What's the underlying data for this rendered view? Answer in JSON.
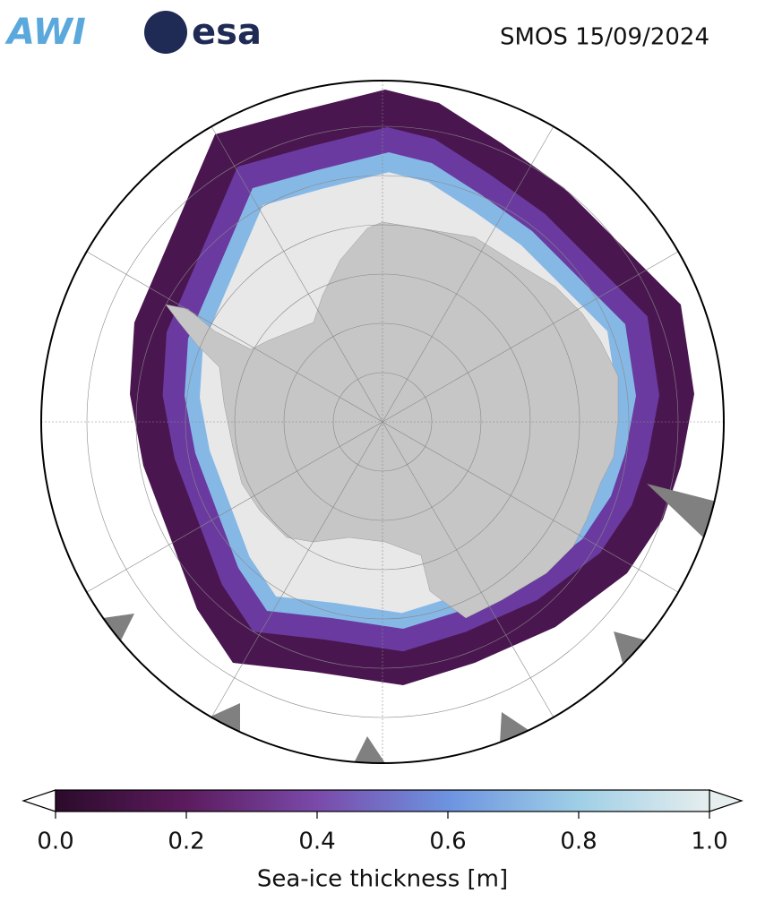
{
  "header": {
    "logos": [
      "AWI",
      "esa"
    ],
    "title": "SMOS 15/09/2024"
  },
  "colorbar": {
    "label": "Sea-ice thickness [m]",
    "lim": [
      0,
      1
    ],
    "ticks": [
      {
        "value": 0,
        "label": "0.0"
      },
      {
        "value": 0.2,
        "label": "0.2"
      },
      {
        "value": 0.4,
        "label": "0.4"
      },
      {
        "value": 0.6,
        "label": "0.6"
      },
      {
        "value": 0.8,
        "label": "0.8"
      },
      {
        "value": 1,
        "label": "1.0"
      }
    ],
    "colors": [
      "#2b0b2b",
      "#5c1b5e",
      "#7a4aaa",
      "#6d93e0",
      "#9fcfe6",
      "#e6eeee"
    ]
  }
}
